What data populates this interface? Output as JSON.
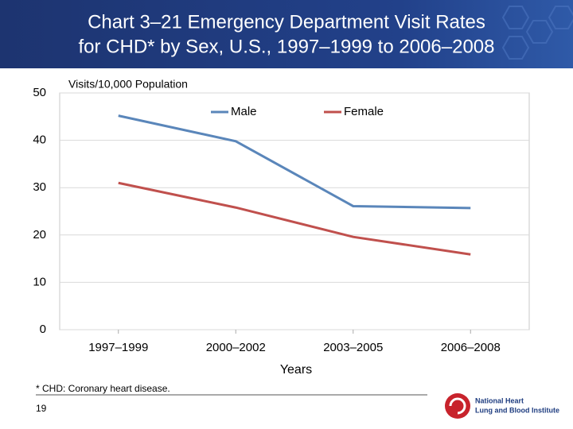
{
  "chart_data": {
    "type": "line",
    "title": [
      "Chart 3–21 Emergency Department Visit Rates",
      "for CHD* by Sex, U.S., 1997–1999 to 2006–2008"
    ],
    "y_label": "Visits/10,000 Population",
    "x_label": "Years",
    "categories": [
      "1997–1999",
      "2000–2002",
      "2003–2005",
      "2006–2008"
    ],
    "series": [
      {
        "name": "Male",
        "color": "#5a86ba",
        "values": [
          45.2,
          39.8,
          26.1,
          25.7
        ]
      },
      {
        "name": "Female",
        "color": "#c0504d",
        "values": [
          31.0,
          25.8,
          19.6,
          15.9
        ]
      }
    ],
    "ylim": [
      0,
      50
    ],
    "yticks": [
      0,
      10,
      20,
      30,
      40,
      50
    ],
    "grid": true,
    "legend": "top"
  },
  "footnote": "* CHD: Coronary heart disease.",
  "page_number": "19",
  "logo": [
    "National Heart",
    "Lung and Blood Institute"
  ]
}
